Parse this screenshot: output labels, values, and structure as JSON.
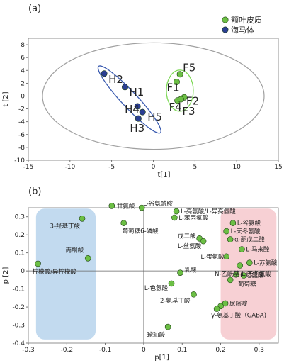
{
  "panels": {
    "a": "(a)",
    "b": "(b)"
  },
  "chart_data": [
    {
      "type": "scatter",
      "title": "",
      "xlabel": "t[1]",
      "ylabel": "t [2]",
      "xlim": [
        -15,
        15
      ],
      "ylim": [
        -10,
        9
      ],
      "xticks": [
        -15,
        -10,
        -5,
        0,
        5,
        10,
        15
      ],
      "yticks": [
        8,
        6,
        4,
        2,
        0,
        -2,
        -4,
        -6,
        -8,
        -10
      ],
      "legend_position": "top-right",
      "grid": false,
      "ellipse": {
        "center": [
          0,
          0
        ],
        "radius_x": 13.3,
        "radius_y": 8.3,
        "color": "#a0a0a0"
      },
      "series": [
        {
          "name": "额叶皮质",
          "color": "#6cbf45",
          "group_color": "#7ed957",
          "points": [
            {
              "label": "F1",
              "x": 2.8,
              "y": 2.2
            },
            {
              "label": "F5",
              "x": 3.2,
              "y": 3.4
            },
            {
              "label": "F2",
              "x": 3.7,
              "y": -0.2
            },
            {
              "label": "F4",
              "x": 2.9,
              "y": -0.7
            },
            {
              "label": "F3",
              "x": 3.3,
              "y": -0.5
            }
          ]
        },
        {
          "name": "海马体",
          "color": "#2b3f93",
          "group_color": "#3a5bb0",
          "points": [
            {
              "label": "H2",
              "x": -5.9,
              "y": 3.5
            },
            {
              "label": "H1",
              "x": -3.4,
              "y": 1.4
            },
            {
              "label": "H4",
              "x": -1.9,
              "y": -1.6
            },
            {
              "label": "H5",
              "x": -1.3,
              "y": -2.5
            },
            {
              "label": "H3",
              "x": -1.8,
              "y": -3.5
            }
          ]
        }
      ]
    },
    {
      "type": "scatter",
      "title": "",
      "xlabel": "p[1]",
      "ylabel": "p [2]",
      "xlim": [
        -0.3,
        0.35
      ],
      "ylim": [
        -0.4,
        0.35
      ],
      "xticks": [
        -0.3,
        -0.2,
        -0.1,
        0,
        0.1,
        0.2,
        0.3
      ],
      "xticklabels": [
        "-0.3",
        "-0.2",
        "-0.1",
        "0",
        "0.1",
        "0.2",
        "0.3"
      ],
      "yticks": [
        0.3,
        0.2,
        0.1,
        0,
        -0.1,
        -0.2,
        -0.3,
        -0.4
      ],
      "yticklabels": [
        "0.3",
        "0.2",
        "0.1",
        "0",
        "-0.1",
        "-0.2",
        "-0.3",
        "-0.4"
      ],
      "grid": false,
      "marker_color": "#6cbf45",
      "regions": [
        {
          "name": "blue",
          "x0": -0.28,
          "x1": -0.125,
          "y0": -0.38,
          "y1": 0.345,
          "color": "#b7d3ec"
        },
        {
          "name": "pink",
          "x0": 0.2,
          "x1": 0.345,
          "y0": -0.38,
          "y1": 0.345,
          "color": "#f6c8cd"
        }
      ],
      "points": [
        {
          "label": "柠檬酸/异柠檬酸",
          "x": -0.275,
          "y": 0.04
        },
        {
          "label": "3-羟基丁酸",
          "x": -0.16,
          "y": 0.29
        },
        {
          "label": "丙酮酸",
          "x": -0.145,
          "y": 0.07
        },
        {
          "label": "甘氨酸",
          "x": -0.083,
          "y": 0.36
        },
        {
          "label": "L-谷氨酰胺",
          "x": -0.005,
          "y": 0.35
        },
        {
          "label": "葡萄糖6-磷酸",
          "x": -0.052,
          "y": 0.265
        },
        {
          "label": "L-亮氨酸/L-异亮氨酸",
          "x": 0.085,
          "y": 0.33
        },
        {
          "label": "L-苯丙氨酸",
          "x": 0.08,
          "y": 0.295
        },
        {
          "label": "戊二酸",
          "x": 0.145,
          "y": 0.18
        },
        {
          "label": "L-丝氨酸",
          "x": 0.155,
          "y": 0.165
        },
        {
          "label": "乳酸",
          "x": 0.095,
          "y": -0.01
        },
        {
          "label": "L-色氨酸",
          "x": 0.072,
          "y": -0.07
        },
        {
          "label": "2-氨基丁酸",
          "x": 0.13,
          "y": -0.13
        },
        {
          "label": "琥珀酸",
          "x": 0.063,
          "y": -0.31
        },
        {
          "label": "L-谷氨酸",
          "x": 0.232,
          "y": 0.265
        },
        {
          "label": "L-天冬氨酸",
          "x": 0.215,
          "y": 0.22
        },
        {
          "label": "α-酮戊二酸",
          "x": 0.225,
          "y": 0.175
        },
        {
          "label": "L-马来酸",
          "x": 0.255,
          "y": 0.12
        },
        {
          "label": "L-蛋氨酸",
          "x": 0.215,
          "y": 0.08
        },
        {
          "label": "L-苏氨酸",
          "x": 0.275,
          "y": 0.045
        },
        {
          "label": "",
          "x": 0.25,
          "y": 0.03
        },
        {
          "label": "L-组氨酸",
          "x": 0.24,
          "y": -0.02
        },
        {
          "label": "葡萄糖",
          "x": 0.26,
          "y": -0.025
        },
        {
          "label": "N-乙酰基-L-天冬氨酸",
          "x": 0.225,
          "y": -0.05
        },
        {
          "label": "尿嘧啶",
          "x": 0.212,
          "y": -0.18
        },
        {
          "label": "",
          "x": 0.2,
          "y": -0.195
        },
        {
          "label": "γ-氨基丁酸（GABA)",
          "x": 0.19,
          "y": -0.21
        }
      ]
    }
  ]
}
